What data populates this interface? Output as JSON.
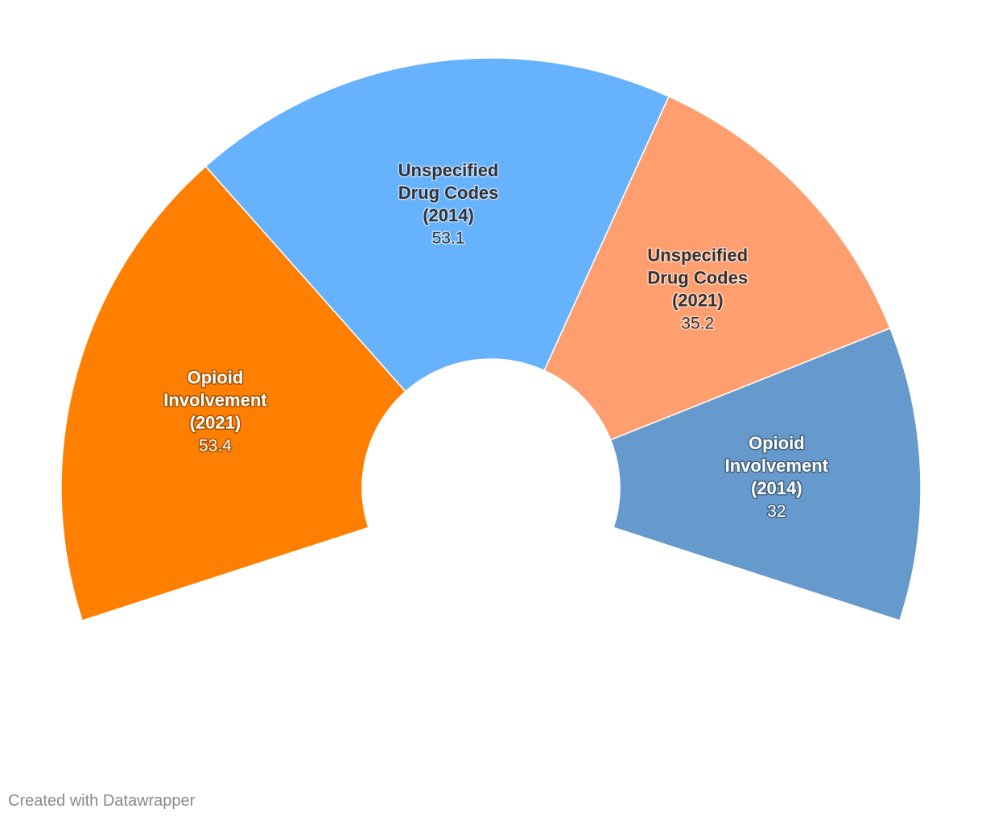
{
  "chart_data": {
    "type": "pie",
    "variant": "semi-donut",
    "title": "",
    "slices": [
      {
        "label_lines": [
          "Opioid",
          "Involvement",
          "(2021)"
        ],
        "value": 53.4,
        "value_label": "53.4",
        "color": "#ff7f00",
        "label_color": "light"
      },
      {
        "label_lines": [
          "Unspecified",
          "Drug Codes",
          "(2014)"
        ],
        "value": 53.1,
        "value_label": "53.1",
        "color": "#67b2fd",
        "label_color": "dark"
      },
      {
        "label_lines": [
          "Unspecified",
          "Drug Codes",
          "(2021)"
        ],
        "value": 35.2,
        "value_label": "35.2",
        "color": "#ff9e6e",
        "label_color": "dark"
      },
      {
        "label_lines": [
          "Opioid",
          "Involvement",
          "(2014)"
        ],
        "value": 32,
        "value_label": "32",
        "color": "#6699cc",
        "label_color": "light"
      }
    ]
  },
  "footer": {
    "credit": "Created with Datawrapper"
  }
}
